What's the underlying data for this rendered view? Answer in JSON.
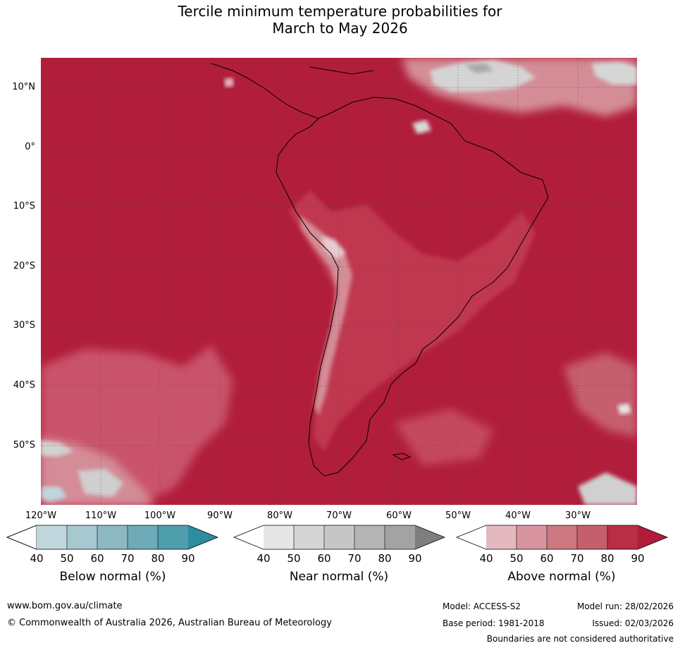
{
  "title_line1": "Tercile minimum temperature probabilities for",
  "title_line2": "March to May 2026",
  "lat_labels": [
    "10°N",
    "0°",
    "10°S",
    "20°S",
    "30°S",
    "40°S",
    "50°S"
  ],
  "lon_labels": [
    "120°W",
    "110°W",
    "100°W",
    "90°W",
    "80°W",
    "70°W",
    "60°W",
    "50°W",
    "40°W",
    "30°W"
  ],
  "legends": [
    {
      "title": "Below normal (%)",
      "ticks": [
        "40",
        "50",
        "60",
        "70",
        "80",
        "90"
      ],
      "colors": [
        "#bfd6dc",
        "#a6c8cf",
        "#8cb9c3",
        "#6eaab7",
        "#4e9eab",
        "#2d8c9e"
      ]
    },
    {
      "title": "Near normal (%)",
      "ticks": [
        "40",
        "50",
        "60",
        "70",
        "80",
        "90"
      ],
      "colors": [
        "#e6e6e6",
        "#d5d5d5",
        "#c6c6c6",
        "#b5b5b5",
        "#a3a3a3",
        "#7e7e7e"
      ]
    },
    {
      "title": "Above normal (%)",
      "ticks": [
        "40",
        "50",
        "60",
        "70",
        "80",
        "90"
      ],
      "colors": [
        "#e4b8bf",
        "#d9959f",
        "#cc7881",
        "#c65f6d",
        "#b92d45",
        "#b01c3a"
      ]
    }
  ],
  "footer": {
    "website": "www.bom.gov.au/climate",
    "copyright": "© Commonwealth of Australia 2026, Australian Bureau of Meteorology",
    "model": "Model: ACCESS-S2",
    "base_period": "Base period: 1981-2018",
    "model_run": "Model run: 28/02/2026",
    "issued": "Issued: 02/03/2026",
    "disclaimer": "Boundaries are not considered authoritative"
  }
}
